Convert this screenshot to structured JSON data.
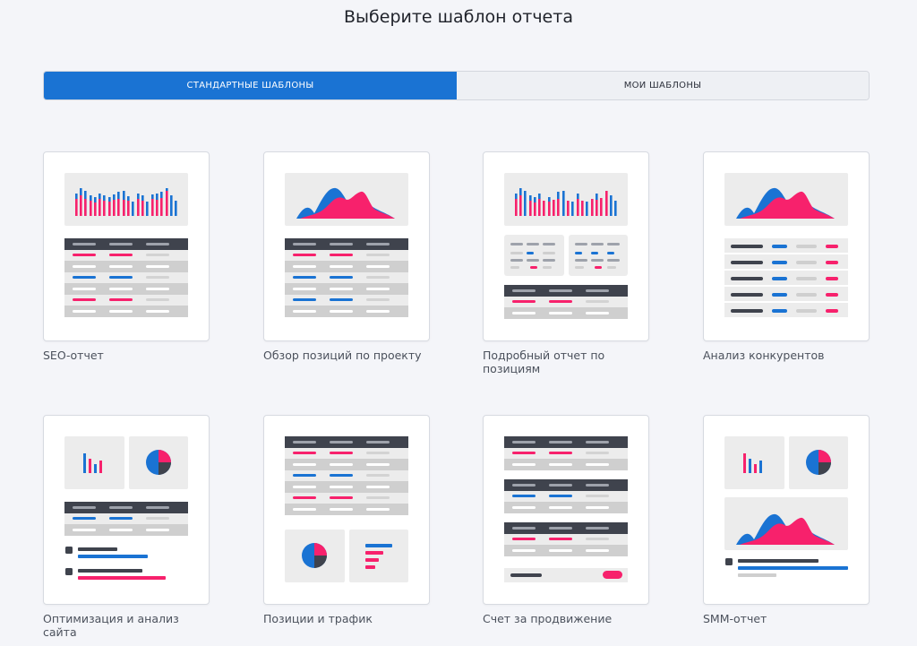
{
  "page": {
    "title": "Выберите шаблон отчета"
  },
  "tabs": {
    "standard": "СТАНДАРТНЫЕ ШАБЛОНЫ",
    "mine": "МОИ ШАБЛОНЫ"
  },
  "colors": {
    "accent": "#1a73d3",
    "pink": "#f7216c",
    "dark": "#3f434d",
    "gray": "#cfcfcf",
    "light": "#ececec",
    "blue": "#1a73d3"
  },
  "templates": [
    {
      "label": "SEO-отчет",
      "icon": "seo-report-preview"
    },
    {
      "label": "Обзор позиций по проекту",
      "icon": "positions-overview-preview"
    },
    {
      "label": "Подробный отчет по позициям",
      "icon": "detailed-positions-preview"
    },
    {
      "label": "Анализ конкурентов",
      "icon": "competitors-analysis-preview"
    },
    {
      "label": "Оптимизация и анализ сайта",
      "icon": "site-optimization-preview"
    },
    {
      "label": "Позиции и трафик",
      "icon": "positions-traffic-preview"
    },
    {
      "label": "Счет за продвижение",
      "icon": "promotion-invoice-preview"
    },
    {
      "label": "SMM-отчет",
      "icon": "smm-report-preview"
    }
  ]
}
